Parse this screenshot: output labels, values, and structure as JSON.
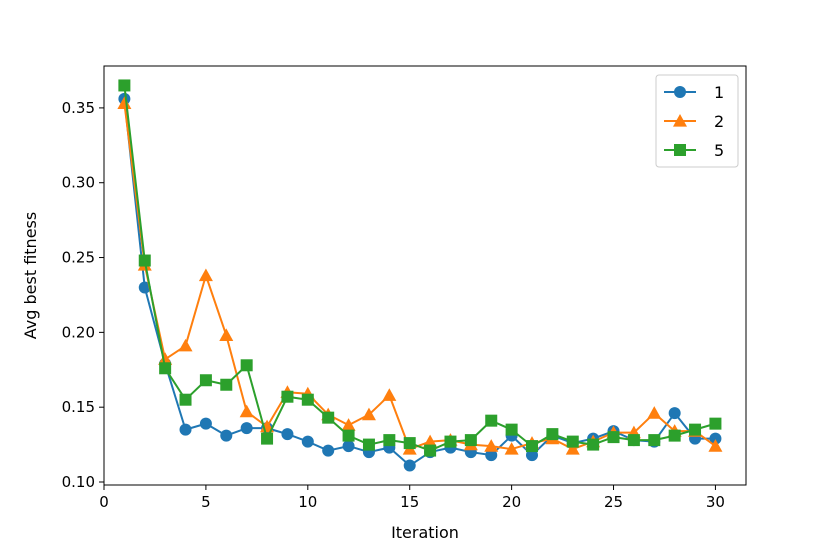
{
  "chart_data": {
    "type": "line",
    "title": "",
    "xlabel": "Iteration",
    "ylabel": "Avg best fitness",
    "xlim": [
      0,
      31.5
    ],
    "ylim": [
      0.098,
      0.378
    ],
    "xticks": [
      0,
      5,
      10,
      15,
      20,
      25,
      30
    ],
    "yticks": [
      0.1,
      0.15,
      0.2,
      0.25,
      0.3,
      0.35
    ],
    "xtick_labels": [
      "0",
      "5",
      "10",
      "15",
      "20",
      "25",
      "30"
    ],
    "ytick_labels": [
      "0.10",
      "0.15",
      "0.20",
      "0.25",
      "0.30",
      "0.35"
    ],
    "grid": false,
    "legend_position": "top-right",
    "x": [
      1,
      2,
      3,
      4,
      5,
      6,
      7,
      8,
      9,
      10,
      11,
      12,
      13,
      14,
      15,
      16,
      17,
      18,
      19,
      20,
      21,
      22,
      23,
      24,
      25,
      26,
      27,
      28,
      29,
      30
    ],
    "series": [
      {
        "name": "1",
        "color": "#1f77b4",
        "marker": "circle",
        "values": [
          0.356,
          0.23,
          0.179,
          0.135,
          0.139,
          0.131,
          0.136,
          0.136,
          0.132,
          0.127,
          0.121,
          0.124,
          0.12,
          0.123,
          0.111,
          0.12,
          0.123,
          0.12,
          0.118,
          0.131,
          0.118,
          0.131,
          0.126,
          0.129,
          0.134,
          0.128,
          0.127,
          0.146,
          0.129,
          0.129
        ]
      },
      {
        "name": "2",
        "color": "#ff7f0e",
        "marker": "triangle",
        "values": [
          0.353,
          0.245,
          0.182,
          0.191,
          0.238,
          0.198,
          0.147,
          0.137,
          0.16,
          0.159,
          0.145,
          0.138,
          0.145,
          0.158,
          0.122,
          0.127,
          0.128,
          0.125,
          0.124,
          0.122,
          0.126,
          0.129,
          0.122,
          0.127,
          0.133,
          0.133,
          0.146,
          0.134,
          0.134,
          0.124
        ]
      },
      {
        "name": "5",
        "color": "#2ca02c",
        "marker": "square",
        "values": [
          0.365,
          0.248,
          0.176,
          0.155,
          0.168,
          0.165,
          0.178,
          0.129,
          0.157,
          0.155,
          0.143,
          0.131,
          0.125,
          0.128,
          0.126,
          0.121,
          0.127,
          0.128,
          0.141,
          0.135,
          0.124,
          0.132,
          0.127,
          0.125,
          0.13,
          0.128,
          0.128,
          0.131,
          0.135,
          0.139
        ]
      }
    ]
  }
}
